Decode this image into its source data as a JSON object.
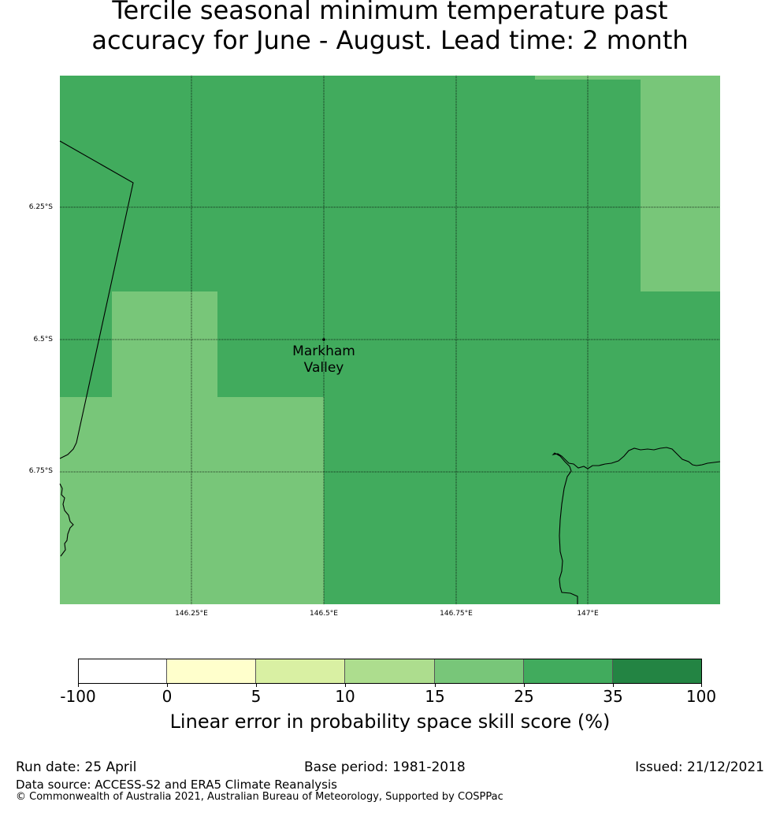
{
  "title": {
    "line1": "Tercile seasonal minimum temperature past",
    "line2": "accuracy for June - August. Lead time: 2 month"
  },
  "map": {
    "lat_ticks": [
      "6.25°S",
      "6.5°S",
      "6.75°S"
    ],
    "lon_ticks": [
      "146.25°E",
      "146.5°E",
      "146.75°E",
      "147°E"
    ],
    "place_label": {
      "line1": "Markham",
      "line2": "Valley"
    },
    "colors": {
      "dark_green": "#41ab5d",
      "light_green": "#78c679",
      "coast": "#000000",
      "grid": "#000000"
    }
  },
  "colorbar": {
    "tick_labels": [
      "-100",
      "0",
      "5",
      "10",
      "15",
      "25",
      "35",
      "100"
    ],
    "colors": [
      "#ffffff",
      "#ffffcc",
      "#d9f0a3",
      "#addd8e",
      "#78c679",
      "#41ab5d",
      "#238443"
    ],
    "label": "Linear error in probability space skill score (%)"
  },
  "footer": {
    "run_date": "Run date: 25 April",
    "base_period": "Base period: 1981-2018",
    "issued": "Issued: 21/12/2021",
    "data_source": "Data source: ACCESS-S2 and ERA5 Climate Reanalysis",
    "copyright": "© Commonwealth of Australia 2021, Australian Bureau of Meteorology, Supported by COSPPac"
  }
}
